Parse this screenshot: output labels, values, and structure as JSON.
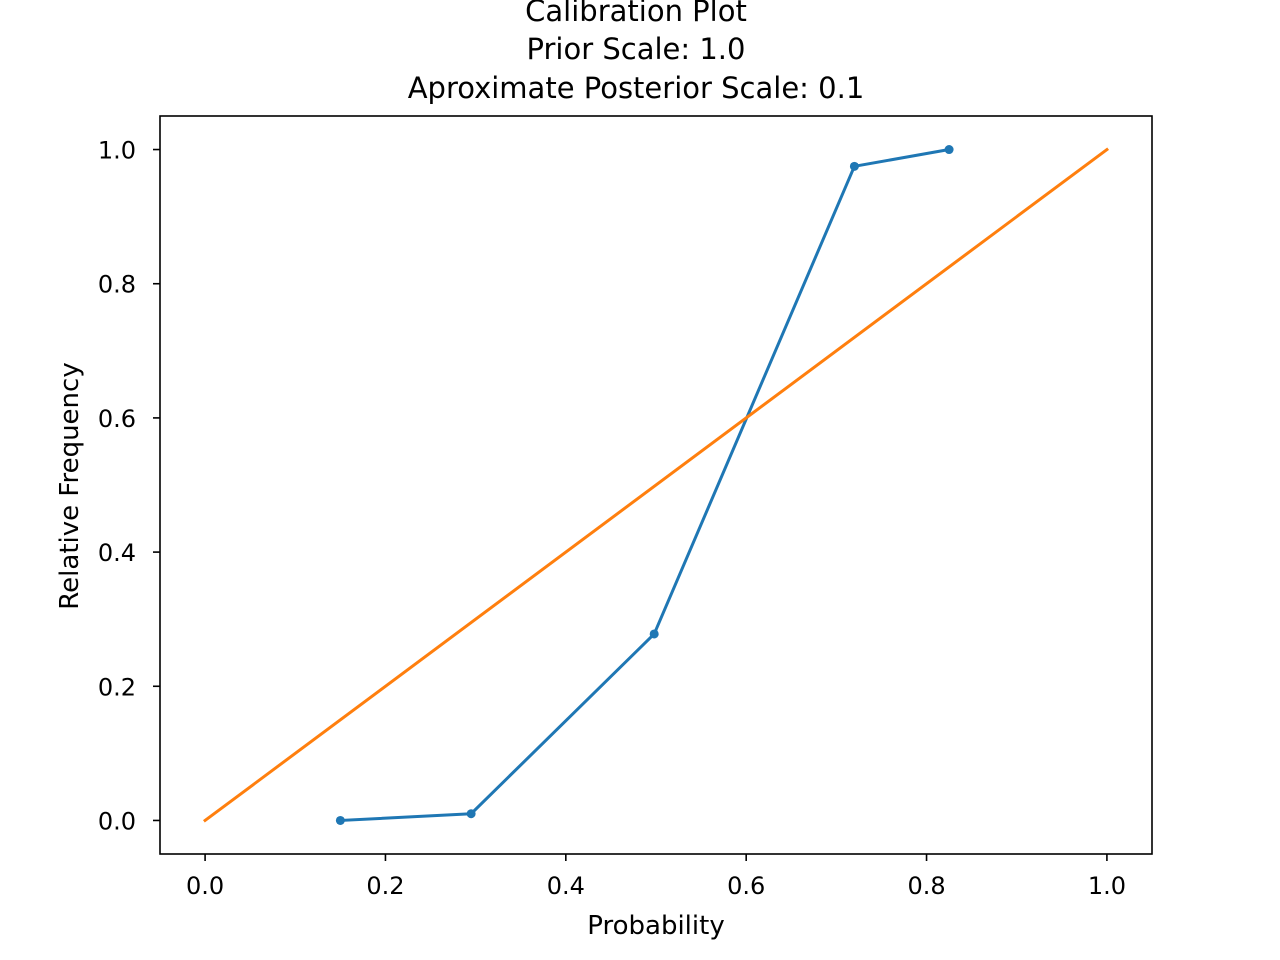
{
  "chart_data": {
    "type": "line",
    "title_lines": [
      "Calibration Plot",
      "Prior Scale: 1.0",
      "Aproximate Posterior Scale: 0.1"
    ],
    "xlabel": "Probability",
    "ylabel": "Relative Frequency",
    "xlim": [
      -0.05,
      1.05
    ],
    "ylim": [
      -0.05,
      1.05
    ],
    "xticks": [
      0.0,
      0.2,
      0.4,
      0.6,
      0.8,
      1.0
    ],
    "xtick_labels": [
      "0.0",
      "0.2",
      "0.4",
      "0.6",
      "0.8",
      "1.0"
    ],
    "yticks": [
      0.0,
      0.2,
      0.4,
      0.6,
      0.8,
      1.0
    ],
    "ytick_labels": [
      "0.0",
      "0.2",
      "0.4",
      "0.6",
      "0.8",
      "1.0"
    ],
    "grid": false,
    "series": [
      {
        "x": [
          0.15,
          0.295,
          0.498,
          0.72,
          0.825
        ],
        "y": [
          0.0,
          0.01,
          0.278,
          0.975,
          1.0
        ],
        "color": "#1f77b4",
        "marker": "circle"
      },
      {
        "x": [
          0.0,
          1.0
        ],
        "y": [
          0.0,
          1.0
        ],
        "color": "#ff7f0e",
        "marker": "none"
      }
    ]
  }
}
